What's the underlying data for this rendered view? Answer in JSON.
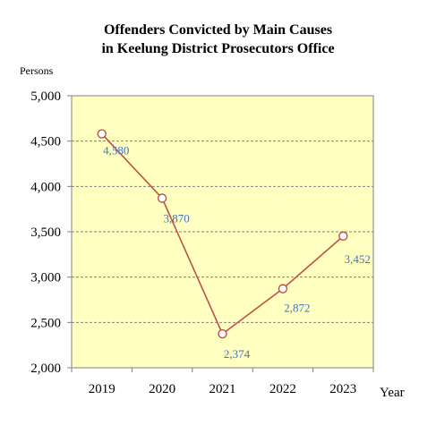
{
  "chart_data": {
    "type": "line",
    "title_lines": [
      "Offenders Convicted by Main Causes",
      "in Keelung District Prosecutors Office"
    ],
    "ylabel": "Persons",
    "xlabel": "Year",
    "categories": [
      "2019",
      "2020",
      "2021",
      "2022",
      "2023"
    ],
    "series": [
      {
        "values": [
          4580,
          3870,
          2374,
          2872,
          3452
        ]
      }
    ],
    "data_labels": [
      "4,580",
      "3,870",
      "2,374",
      "2,872",
      "3,452"
    ],
    "ylim": [
      2000,
      5000
    ],
    "yticks": [
      2000,
      2500,
      3000,
      3500,
      4000,
      4500,
      5000
    ],
    "ytick_labels": [
      "2,000",
      "2,500",
      "3,000",
      "3,500",
      "4,000",
      "4,500",
      "5,000"
    ],
    "grid": true,
    "legend": "none",
    "colors": {
      "plot_background": "#FFFFC0",
      "line": "#C0504D",
      "marker_fill": "#FFFFFF",
      "marker_stroke": "#C0504D",
      "data_label": "#4472C4",
      "gridline": "#808080",
      "axis": "#808080"
    }
  }
}
